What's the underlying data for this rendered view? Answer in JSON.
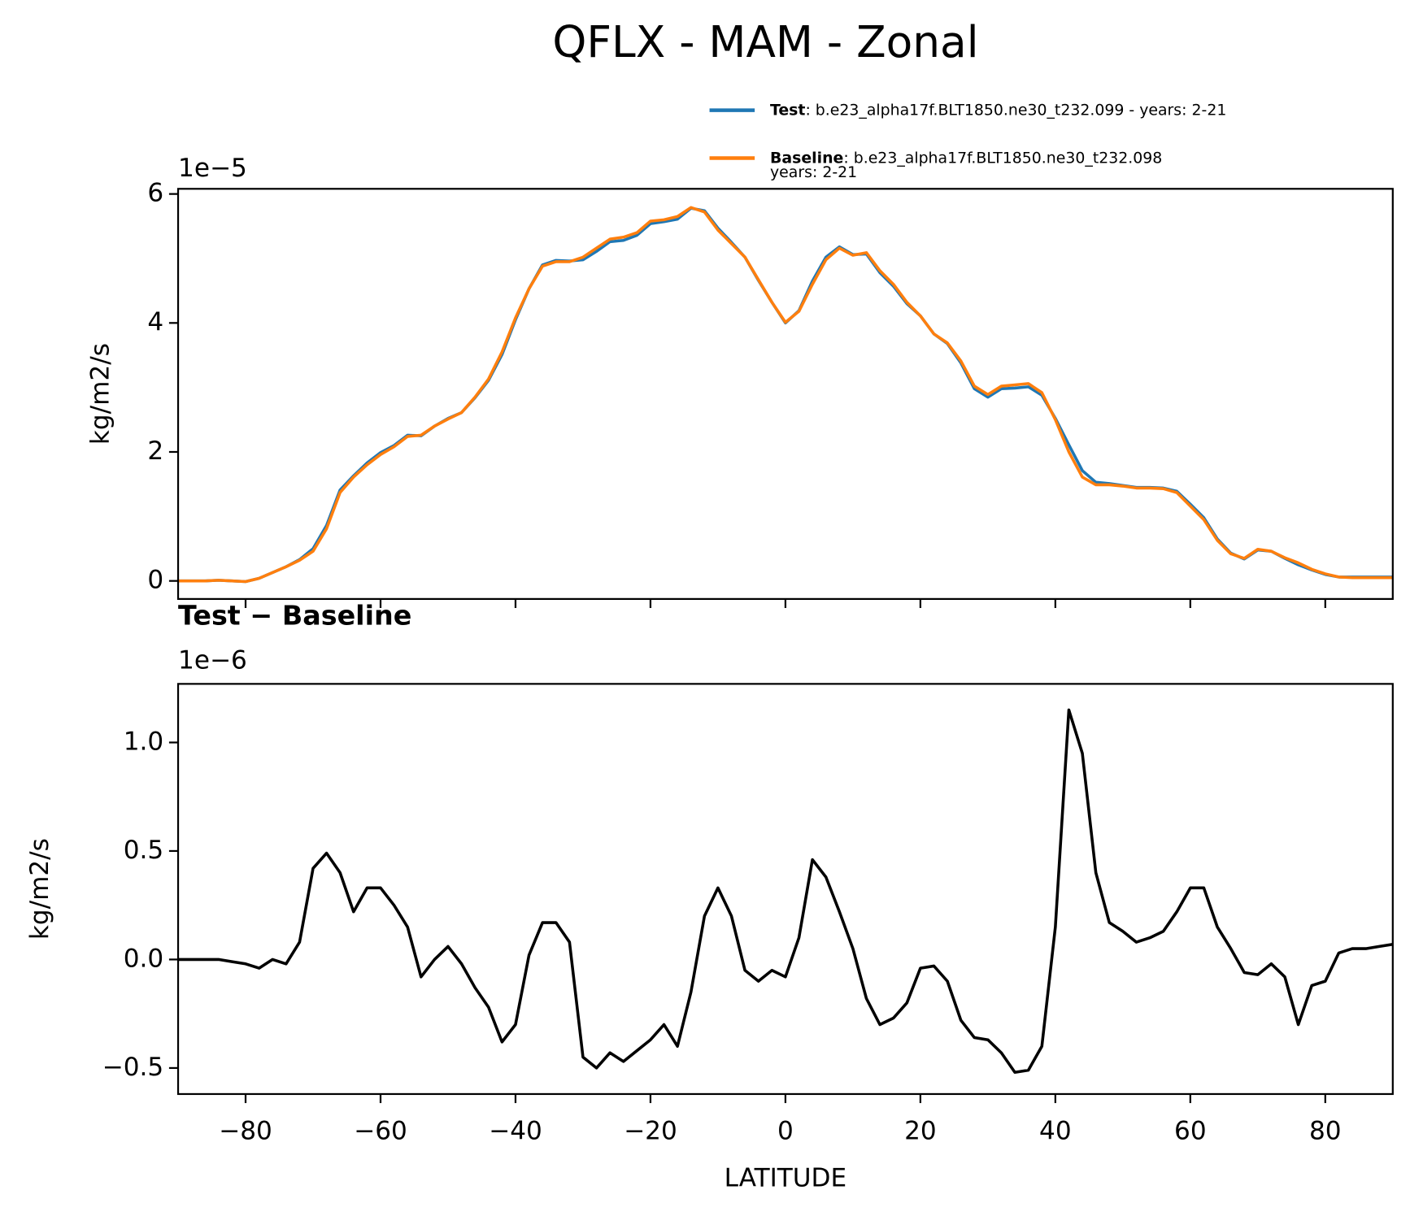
{
  "chart_data": [
    {
      "type": "line",
      "title": "QFLX - MAM - Zonal",
      "offset_label": "1e−5",
      "ylabel": "kg/m2/s",
      "x": [
        -90,
        -88,
        -86,
        -84,
        -82,
        -80,
        -78,
        -76,
        -74,
        -72,
        -70,
        -68,
        -66,
        -64,
        -62,
        -60,
        -58,
        -56,
        -54,
        -52,
        -50,
        -48,
        -46,
        -44,
        -42,
        -40,
        -38,
        -36,
        -34,
        -32,
        -30,
        -28,
        -26,
        -24,
        -22,
        -20,
        -18,
        -16,
        -14,
        -12,
        -10,
        -8,
        -6,
        -4,
        -2,
        0,
        2,
        4,
        6,
        8,
        10,
        12,
        14,
        16,
        18,
        20,
        22,
        24,
        26,
        28,
        30,
        32,
        34,
        36,
        38,
        40,
        42,
        44,
        46,
        48,
        50,
        52,
        54,
        56,
        58,
        60,
        62,
        64,
        66,
        68,
        70,
        72,
        74,
        76,
        78,
        80,
        82,
        84,
        86,
        88,
        90
      ],
      "series": [
        {
          "name": "Test",
          "label": ": b.e23_alpha17f.BLT1850.ne30_t232.099 - years: 2-21",
          "color": "#1f77b4",
          "values": [
            0,
            0,
            0,
            0.01,
            0,
            -0.01,
            0.04,
            0.13,
            0.22,
            0.33,
            0.5,
            0.86,
            1.41,
            1.63,
            1.83,
            1.99,
            2.1,
            2.26,
            2.25,
            2.4,
            2.52,
            2.61,
            2.84,
            3.11,
            3.51,
            4.05,
            4.53,
            4.9,
            4.97,
            4.96,
            4.98,
            5.11,
            5.26,
            5.28,
            5.36,
            5.54,
            5.57,
            5.61,
            5.78,
            5.74,
            5.47,
            5.25,
            5.02,
            4.66,
            4.32,
            4.0,
            4.19,
            4.65,
            5.02,
            5.18,
            5.06,
            5.07,
            4.78,
            4.57,
            4.3,
            4.11,
            3.83,
            3.68,
            3.38,
            2.98,
            2.85,
            2.98,
            2.99,
            3.01,
            2.88,
            2.52,
            2.11,
            1.71,
            1.53,
            1.51,
            1.48,
            1.45,
            1.45,
            1.44,
            1.39,
            1.19,
            0.98,
            0.65,
            0.43,
            0.34,
            0.48,
            0.46,
            0.35,
            0.25,
            0.17,
            0.1,
            0.06,
            0.06,
            0.06,
            0.06,
            0.06
          ]
        },
        {
          "name": "Baseline",
          "label": [
            ": b.e23_alpha17f.BLT1850.ne30_t232.098",
            "years: 2-21"
          ],
          "color": "#ff7f0e",
          "values": [
            0,
            0,
            0,
            0.01,
            0,
            -0.01,
            0.04,
            0.13,
            0.22,
            0.32,
            0.46,
            0.81,
            1.37,
            1.61,
            1.8,
            1.96,
            2.08,
            2.24,
            2.26,
            2.4,
            2.51,
            2.61,
            2.85,
            3.13,
            3.55,
            4.08,
            4.53,
            4.88,
            4.95,
            4.95,
            5.02,
            5.16,
            5.3,
            5.33,
            5.4,
            5.58,
            5.6,
            5.65,
            5.79,
            5.72,
            5.44,
            5.23,
            5.02,
            4.67,
            4.32,
            4.01,
            4.18,
            4.6,
            4.98,
            5.16,
            5.05,
            5.09,
            4.81,
            4.6,
            4.32,
            4.11,
            3.83,
            3.69,
            3.41,
            3.02,
            2.89,
            3.02,
            3.04,
            3.06,
            2.92,
            2.5,
            2.0,
            1.61,
            1.49,
            1.49,
            1.47,
            1.44,
            1.44,
            1.43,
            1.37,
            1.16,
            0.95,
            0.63,
            0.42,
            0.35,
            0.49,
            0.46,
            0.36,
            0.28,
            0.18,
            0.11,
            0.06,
            0.05,
            0.05,
            0.05,
            0.05
          ]
        }
      ],
      "xlim": [
        -90,
        90
      ],
      "xticks": [
        -80,
        -60,
        -40,
        -20,
        0,
        20,
        40,
        60,
        80
      ],
      "ylim": [
        -0.28,
        6.08
      ],
      "yticks": [
        0,
        2,
        4,
        6
      ]
    },
    {
      "type": "line",
      "title": "Test − Baseline",
      "offset_label": "1e−6",
      "ylabel": "kg/m2/s",
      "xlabel": "LATITUDE",
      "x": [
        -90,
        -88,
        -86,
        -84,
        -82,
        -80,
        -78,
        -76,
        -74,
        -72,
        -70,
        -68,
        -66,
        -64,
        -62,
        -60,
        -58,
        -56,
        -54,
        -52,
        -50,
        -48,
        -46,
        -44,
        -42,
        -40,
        -38,
        -36,
        -34,
        -32,
        -30,
        -28,
        -26,
        -24,
        -22,
        -20,
        -18,
        -16,
        -14,
        -12,
        -10,
        -8,
        -6,
        -4,
        -2,
        0,
        2,
        4,
        6,
        8,
        10,
        12,
        14,
        16,
        18,
        20,
        22,
        24,
        26,
        28,
        30,
        32,
        34,
        36,
        38,
        40,
        42,
        44,
        46,
        48,
        50,
        52,
        54,
        56,
        58,
        60,
        62,
        64,
        66,
        68,
        70,
        72,
        74,
        76,
        78,
        80,
        82,
        84,
        86,
        88,
        90
      ],
      "series": [
        {
          "color": "#000000",
          "values": [
            0,
            0,
            0,
            0,
            -0.01,
            -0.02,
            -0.04,
            0,
            -0.02,
            0.08,
            0.42,
            0.49,
            0.4,
            0.22,
            0.33,
            0.33,
            0.25,
            0.15,
            -0.08,
            0,
            0.06,
            -0.02,
            -0.13,
            -0.22,
            -0.38,
            -0.3,
            0.02,
            0.17,
            0.17,
            0.08,
            -0.45,
            -0.5,
            -0.43,
            -0.47,
            -0.42,
            -0.37,
            -0.3,
            -0.4,
            -0.15,
            0.2,
            0.33,
            0.2,
            -0.05,
            -0.1,
            -0.05,
            -0.08,
            0.1,
            0.46,
            0.38,
            0.22,
            0.05,
            -0.18,
            -0.3,
            -0.27,
            -0.2,
            -0.04,
            -0.03,
            -0.1,
            -0.28,
            -0.36,
            -0.37,
            -0.43,
            -0.52,
            -0.51,
            -0.4,
            0.15,
            1.15,
            0.95,
            0.4,
            0.17,
            0.13,
            0.08,
            0.1,
            0.13,
            0.22,
            0.33,
            0.33,
            0.15,
            0.05,
            -0.06,
            -0.07,
            -0.02,
            -0.08,
            -0.3,
            -0.12,
            -0.1,
            0.03,
            0.05,
            0.05,
            0.06,
            0.07
          ]
        }
      ],
      "xlim": [
        -90,
        90
      ],
      "xticks": [
        {
          "value": -80,
          "label": "−80"
        },
        {
          "value": -60,
          "label": "−60"
        },
        {
          "value": -40,
          "label": "−40"
        },
        {
          "value": -20,
          "label": "−20"
        },
        0,
        20,
        40,
        60,
        80
      ],
      "ylim": [
        -0.62,
        1.27
      ],
      "yticks": [
        {
          "value": -0.5,
          "label": "−0.5"
        },
        {
          "value": 0,
          "label": "0.0"
        },
        0.5,
        {
          "value": 1,
          "label": "1.0"
        }
      ]
    }
  ]
}
